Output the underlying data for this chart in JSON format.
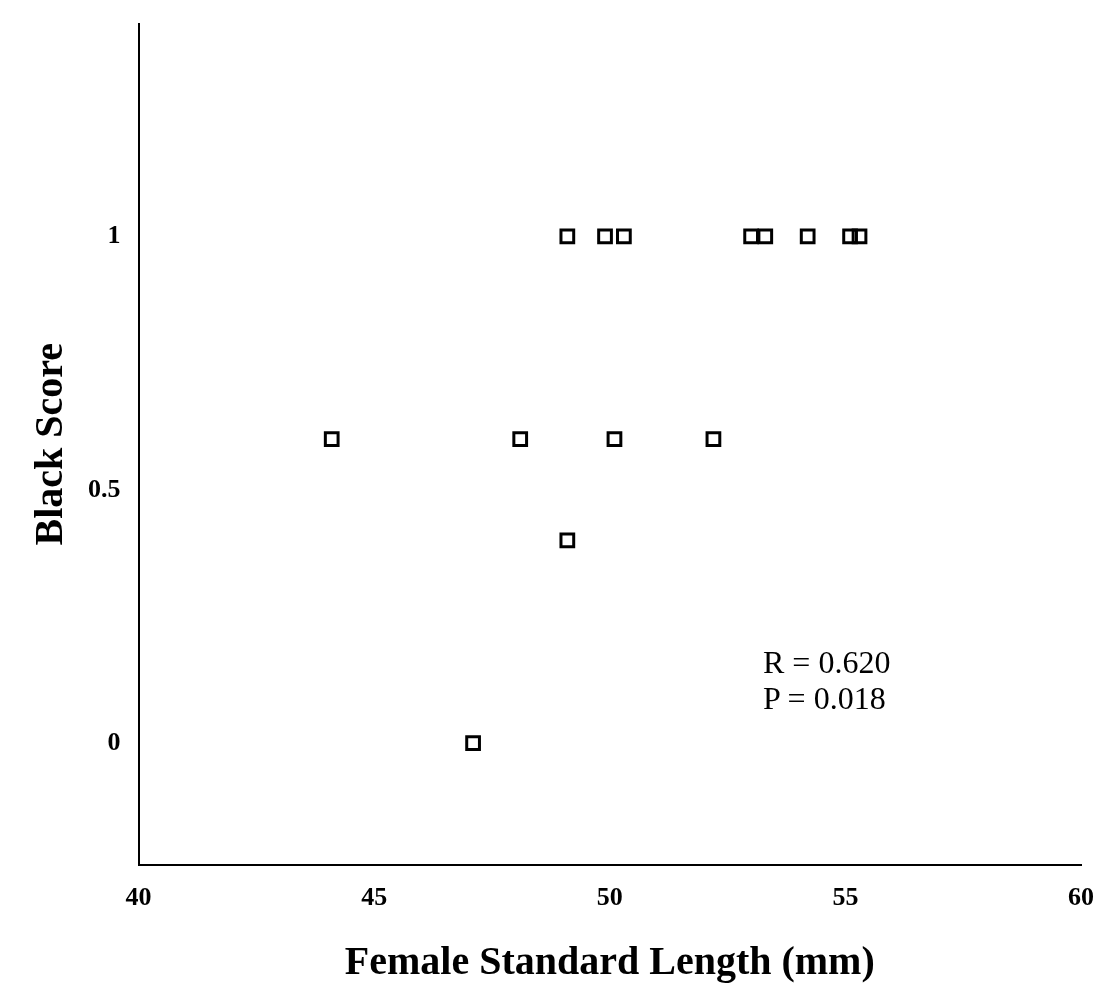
{
  "chart_data": {
    "type": "scatter",
    "xlabel": "Female Standard Length (mm)",
    "ylabel": "Black Score",
    "x": [
      44.1,
      47.1,
      48.1,
      49.1,
      49.1,
      49.9,
      50.1,
      50.3,
      52.2,
      53.0,
      53.3,
      54.2,
      55.1,
      55.3
    ],
    "values": [
      0.6,
      0,
      0.6,
      0.4,
      1,
      1,
      0.6,
      1,
      0.6,
      1,
      1,
      1,
      1,
      1
    ],
    "color": "#000000",
    "marker": "square",
    "grid": false,
    "legend": false,
    "xlim": [
      40,
      60
    ],
    "xticks": [
      40,
      45,
      50,
      55,
      60
    ],
    "ylim": [
      -0.24,
      1.42
    ],
    "yticks": [
      0,
      {
        "value": 0.5,
        "label": "0.5"
      },
      1
    ],
    "annotations": [
      "R = 0.620",
      "P = 0.018"
    ]
  }
}
